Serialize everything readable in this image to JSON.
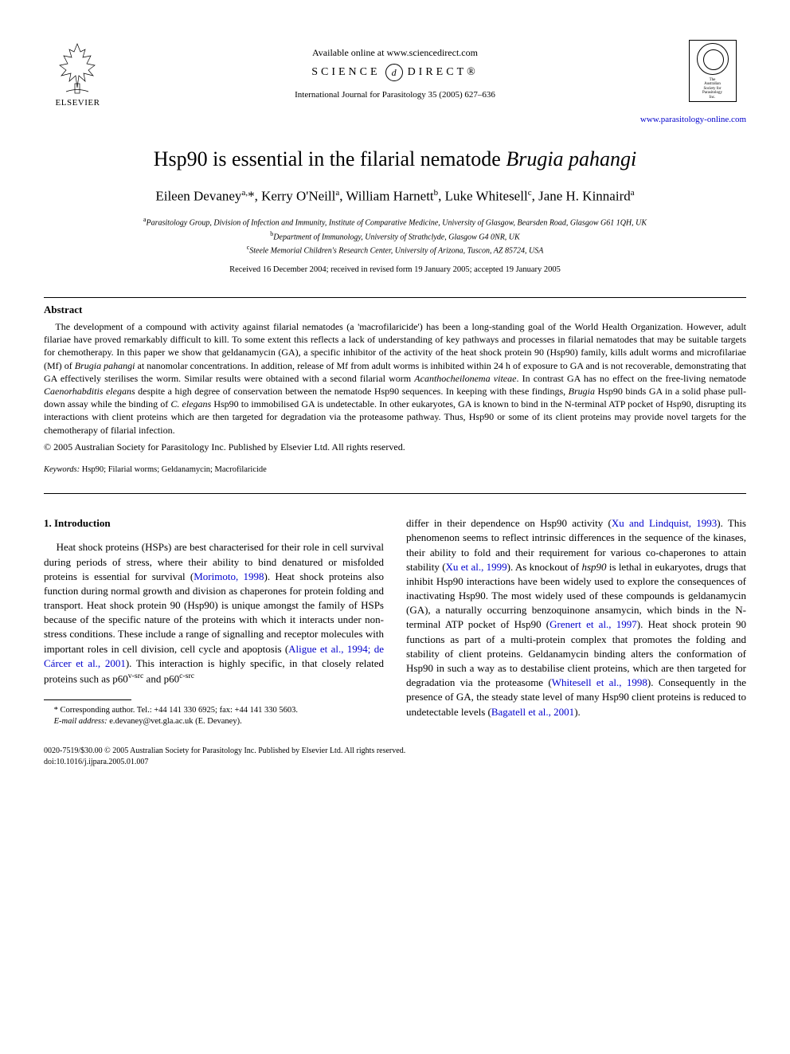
{
  "header": {
    "elsevier_label": "ELSEVIER",
    "availability": "Available online at www.sciencedirect.com",
    "sciencedirect_left": "SCIENCE",
    "sciencedirect_right": "DIRECT®",
    "journal_ref": "International Journal for Parasitology 35 (2005) 627–636",
    "society_lines": [
      "The",
      "Australian",
      "Society for",
      "Parasitology",
      "Inc."
    ],
    "online_link": "www.parasitology-online.com"
  },
  "title": {
    "prefix": "Hsp90 is essential in the filarial nematode ",
    "italic": "Brugia pahangi"
  },
  "authors_html": "Eileen Devaney<sup>a,</sup>*, Kerry O'Neill<sup>a</sup>, William Harnett<sup>b</sup>, Luke Whitesell<sup>c</sup>, Jane H. Kinnaird<sup>a</sup>",
  "affiliations": {
    "a": "Parasitology Group, Division of Infection and Immunity, Institute of Comparative Medicine, University of Glasgow, Bearsden Road, Glasgow G61 1QH, UK",
    "b": "Department of Immunology, University of Strathclyde, Glasgow G4 0NR, UK",
    "c": "Steele Memorial Children's Research Center, University of Arizona, Tuscon, AZ 85724, USA"
  },
  "dates": "Received 16 December 2004; received in revised form 19 January 2005; accepted 19 January 2005",
  "abstract": {
    "heading": "Abstract",
    "body": "The development of a compound with activity against filarial nematodes (a 'macrofilaricide') has been a long-standing goal of the World Health Organization. However, adult filariae have proved remarkably difficult to kill. To some extent this reflects a lack of understanding of key pathways and processes in filarial nematodes that may be suitable targets for chemotherapy. In this paper we show that geldanamycin (GA), a specific inhibitor of the activity of the heat shock protein 90 (Hsp90) family, kills adult worms and microfilariae (Mf) of <span class=\"italic\">Brugia pahangi</span> at nanomolar concentrations. In addition, release of Mf from adult worms is inhibited within 24 h of exposure to GA and is not recoverable, demonstrating that GA effectively sterilises the worm. Similar results were obtained with a second filarial worm <span class=\"italic\">Acanthocheilonema viteae</span>. In contrast GA has no effect on the free-living nematode <span class=\"italic\">Caenorhabditis elegans</span> despite a high degree of conservation between the nematode Hsp90 sequences. In keeping with these findings, <span class=\"italic\">Brugia</span> Hsp90 binds GA in a solid phase pull-down assay while the binding of <span class=\"italic\">C. elegans</span> Hsp90 to immobilised GA is undetectable. In other eukaryotes, GA is known to bind in the N-terminal ATP pocket of Hsp90, disrupting its interactions with client proteins which are then targeted for degradation via the proteasome pathway. Thus, Hsp90 or some of its client proteins may provide novel targets for the chemotherapy of filarial infection.",
    "copyright": "© 2005 Australian Society for Parasitology Inc. Published by Elsevier Ltd. All rights reserved."
  },
  "keywords": {
    "label": "Keywords:",
    "text": " Hsp90; Filarial worms; Geldanamycin; Macrofilaricide"
  },
  "intro": {
    "heading": "1. Introduction",
    "left": "Heat shock proteins (HSPs) are best characterised for their role in cell survival during periods of stress, where their ability to bind denatured or misfolded proteins is essential for survival (<span class=\"link\">Morimoto, 1998</span>). Heat shock proteins also function during normal growth and division as chaperones for protein folding and transport. Heat shock protein 90 (Hsp90) is unique amongst the family of HSPs because of the specific nature of the proteins with which it interacts under non-stress conditions. These include a range of signalling and receptor molecules with important roles in cell division, cell cycle and apoptosis (<span class=\"link\">Aligue et al., 1994; de Cárcer et al., 2001</span>). This interaction is highly specific, in that closely related proteins such as p60<sup>v-src</sup> and p60<sup>c-src</sup>",
    "right": "differ in their dependence on Hsp90 activity (<span class=\"link\">Xu and Lindquist, 1993</span>). This phenomenon seems to reflect intrinsic differences in the sequence of the kinases, their ability to fold and their requirement for various co-chaperones to attain stability (<span class=\"link\">Xu et al., 1999</span>). As knockout of <span class=\"italic\">hsp90</span> is lethal in eukaryotes, drugs that inhibit Hsp90 interactions have been widely used to explore the consequences of inactivating Hsp90. The most widely used of these compounds is geldanamycin (GA), a naturally occurring benzoquinone ansamycin, which binds in the N-terminal ATP pocket of Hsp90 (<span class=\"link\">Grenert et al., 1997</span>). Heat shock protein 90 functions as part of a multi-protein complex that promotes the folding and stability of client proteins. Geldanamycin binding alters the conformation of Hsp90 in such a way as to destabilise client proteins, which are then targeted for degradation via the proteasome (<span class=\"link\">Whitesell et al., 1998</span>). Consequently in the presence of GA, the steady state level of many Hsp90 client proteins is reduced to undetectable levels (<span class=\"link\">Bagatell et al., 2001</span>)."
  },
  "footnote": {
    "corresponding": "* Corresponding author. Tel.: +44 141 330 6925; fax: +44 141 330 5603.",
    "email_label": "E-mail address:",
    "email": " e.devaney@vet.gla.ac.uk (E. Devaney)."
  },
  "bottom": {
    "issn_line": "0020-7519/$30.00 © 2005 Australian Society for Parasitology Inc. Published by Elsevier Ltd. All rights reserved.",
    "doi_line": "doi:10.1016/j.ijpara.2005.01.007"
  }
}
